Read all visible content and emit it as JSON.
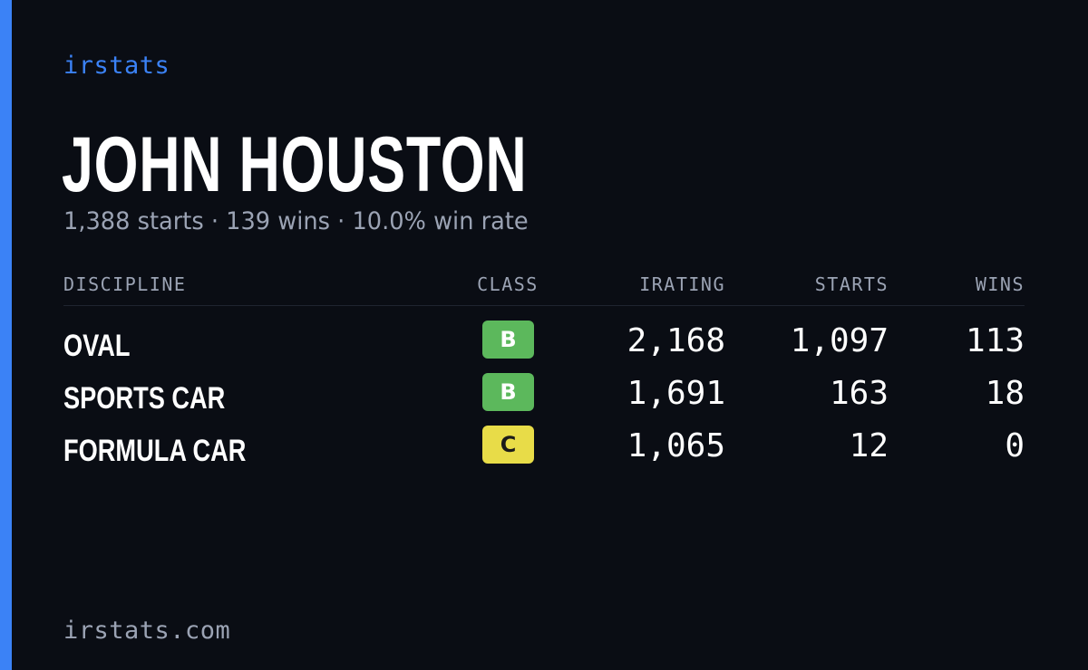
{
  "brand": "irstats",
  "driver": {
    "name": "JOHN HOUSTON",
    "summary": "1,388 starts · 139 wins · 10.0% win rate"
  },
  "table": {
    "headers": {
      "discipline": "DISCIPLINE",
      "class": "CLASS",
      "irating": "IRATING",
      "starts": "STARTS",
      "wins": "WINS"
    },
    "rows": [
      {
        "discipline": "OVAL",
        "class": "B",
        "irating": "2,168",
        "starts": "1,097",
        "wins": "113"
      },
      {
        "discipline": "SPORTS CAR",
        "class": "B",
        "irating": "1,691",
        "starts": "163",
        "wins": "18"
      },
      {
        "discipline": "FORMULA CAR",
        "class": "C",
        "irating": "1,065",
        "starts": "12",
        "wins": "0"
      }
    ]
  },
  "footer": "irstats.com",
  "colors": {
    "accent": "#3b82f6",
    "background": "#0a0d14",
    "class_b": "#5cb85c",
    "class_c": "#e8dc48",
    "muted_text": "#9ba3b4"
  }
}
